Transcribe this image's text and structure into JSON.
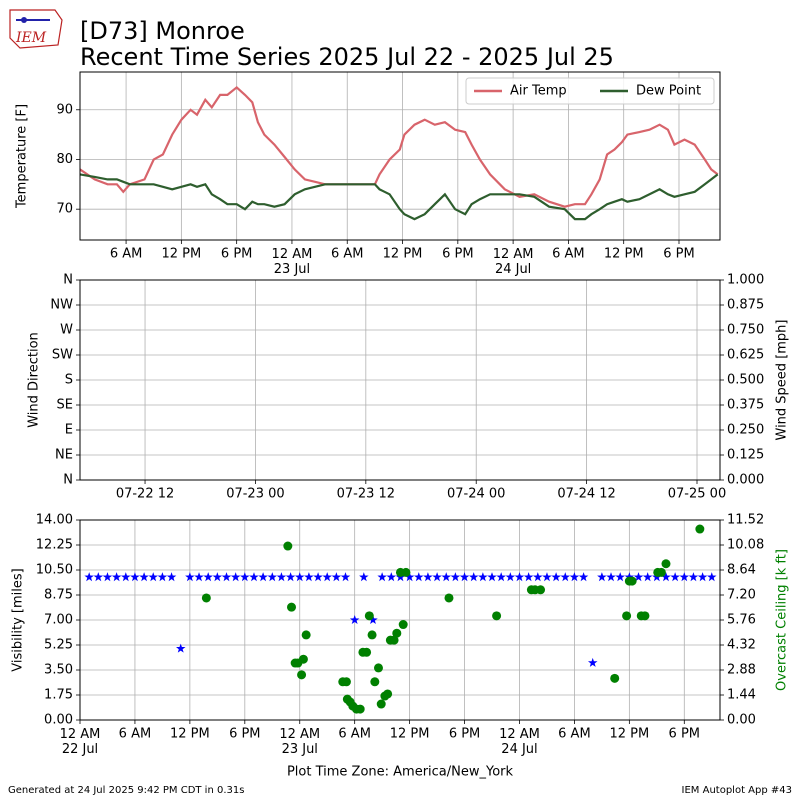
{
  "header": {
    "title": "[D73] Monroe",
    "subtitle": "Recent Time Series 2025 Jul 22 - 2025 Jul 25",
    "logo_text": "IEM"
  },
  "chart_data": [
    {
      "type": "line",
      "ylabel": "Temperature [F]",
      "grid": true,
      "legend": "upper right",
      "xlim": [
        1.0,
        70.45
      ],
      "xticks": [
        {
          "value": 6,
          "label": "6 AM"
        },
        {
          "value": 12,
          "label": "12 PM"
        },
        {
          "value": 18,
          "label": "6 PM"
        },
        {
          "value": 24,
          "label": "12 AM\n23 Jul"
        },
        {
          "value": 30,
          "label": "6 AM"
        },
        {
          "value": 36,
          "label": "12 PM"
        },
        {
          "value": 42,
          "label": "6 PM"
        },
        {
          "value": 48,
          "label": "12 AM\n24 Jul"
        },
        {
          "value": 54,
          "label": "6 AM"
        },
        {
          "value": 60,
          "label": "12 PM"
        },
        {
          "value": 66,
          "label": "6 PM"
        }
      ],
      "ylim": [
        63.8,
        97.6
      ],
      "yticks": [
        70,
        80,
        90
      ],
      "x": [
        1,
        2.6,
        4,
        5,
        5.7,
        6.4,
        8,
        9,
        10,
        11,
        12,
        13,
        13.7,
        14.6,
        15.3,
        16.2,
        17,
        18,
        18.9,
        19.7,
        20.3,
        21,
        22.1,
        23.2,
        24.3,
        25.4,
        26.5,
        27.6,
        30,
        33,
        33.5,
        34.6,
        35.7,
        36.2,
        37.3,
        38.4,
        39.5,
        40.6,
        41.7,
        42.8,
        43.5,
        44.4,
        45.5,
        47.1,
        48.7,
        50.3,
        51.9,
        53.6,
        54.7,
        55.8,
        56.5,
        57.4,
        58.2,
        59,
        59.8,
        60.4,
        61.7,
        62.8,
        63.9,
        64.8,
        65.5,
        66.6,
        67.7,
        68.8,
        69.5,
        70.2
      ],
      "series": [
        {
          "name": "Air Temp",
          "color": "#d8646b",
          "values": [
            78,
            76,
            75,
            75,
            73.5,
            75,
            76,
            80,
            81,
            85,
            88,
            90,
            89,
            92,
            90.5,
            93,
            93,
            94.5,
            93,
            91.5,
            87.5,
            85,
            83,
            80.5,
            78,
            76,
            75.5,
            75,
            75,
            75,
            77,
            80,
            82,
            85,
            87,
            88,
            87,
            87.5,
            86,
            85.5,
            83,
            80,
            77,
            74,
            72.5,
            73,
            71.5,
            70.5,
            71,
            71,
            73,
            76,
            81,
            82,
            83.5,
            85,
            85.5,
            86,
            87,
            86,
            83,
            84,
            83,
            80,
            78,
            77
          ]
        },
        {
          "name": "Dew Point",
          "color": "#2e5e2e",
          "values": [
            77,
            76.5,
            76,
            76,
            75.5,
            75,
            75,
            75,
            74.5,
            74,
            74.5,
            75,
            74.5,
            75,
            73,
            72,
            71,
            71,
            70,
            71.5,
            71,
            71,
            70.5,
            71,
            73,
            74,
            74.5,
            75,
            75,
            75,
            74,
            73,
            70,
            69,
            68,
            69,
            71,
            73,
            70,
            69,
            71,
            72,
            73,
            73,
            73,
            72.5,
            70.5,
            70,
            68,
            68,
            69,
            70,
            71,
            71.5,
            72,
            71.5,
            72,
            73,
            74,
            73,
            72.5,
            73,
            73.5,
            75,
            76,
            77
          ]
        }
      ]
    },
    {
      "type": "line",
      "ylabel": "Wind Direction",
      "y2label": "Wind Speed [mph]",
      "grid": true,
      "xlim": [
        4.93,
        74.5
      ],
      "xticks": [
        {
          "value": 12,
          "label": "07-22 12"
        },
        {
          "value": 24,
          "label": "07-23 00"
        },
        {
          "value": 36,
          "label": "07-23 12"
        },
        {
          "value": 48,
          "label": "07-24 00"
        },
        {
          "value": 60,
          "label": "07-24 12"
        },
        {
          "value": 72,
          "label": "07-25 00"
        }
      ],
      "ylim": [
        0,
        360
      ],
      "yticks": [
        {
          "value": 0,
          "label": "N"
        },
        {
          "value": 45,
          "label": "NE"
        },
        {
          "value": 90,
          "label": "E"
        },
        {
          "value": 135,
          "label": "SE"
        },
        {
          "value": 180,
          "label": "S"
        },
        {
          "value": 225,
          "label": "SW"
        },
        {
          "value": 270,
          "label": "W"
        },
        {
          "value": 315,
          "label": "NW"
        },
        {
          "value": 360,
          "label": "N"
        }
      ],
      "y2lim": [
        0,
        1
      ],
      "y2ticks": [
        {
          "value": 0,
          "label": "0.000"
        },
        0.125,
        {
          "value": 0.25,
          "label": "0.250"
        },
        0.375,
        {
          "value": 0.5,
          "label": "0.500"
        },
        0.625,
        {
          "value": 0.75,
          "label": "0.750"
        },
        0.875,
        {
          "value": 1,
          "label": "1.000"
        }
      ]
    },
    {
      "type": "scatter",
      "ylabel": "Visibility [miles]",
      "y2label": "Overcast Ceiling [k ft]",
      "y2color": "#008000",
      "xlabel": "Plot Time Zone: America/New_York",
      "grid": true,
      "xlim": [
        0,
        69.9
      ],
      "xticks": [
        {
          "value": 0,
          "label": "12 AM\n22 Jul"
        },
        {
          "value": 6,
          "label": "6 AM"
        },
        {
          "value": 12,
          "label": "12 PM"
        },
        {
          "value": 18,
          "label": "6 PM"
        },
        {
          "value": 24,
          "label": "12 AM\n23 Jul"
        },
        {
          "value": 30,
          "label": "6 AM"
        },
        {
          "value": 36,
          "label": "12 PM"
        },
        {
          "value": 42,
          "label": "6 PM"
        },
        {
          "value": 48,
          "label": "12 AM\n24 Jul"
        },
        {
          "value": 54,
          "label": "6 AM"
        },
        {
          "value": 60,
          "label": "12 PM"
        },
        {
          "value": 66,
          "label": "6 PM"
        }
      ],
      "ylim": [
        0,
        14
      ],
      "yticks": [
        {
          "value": 0,
          "label": "0.00"
        },
        1.75,
        {
          "value": 3.5,
          "label": "3.50"
        },
        5.25,
        {
          "value": 7,
          "label": "7.00"
        },
        8.75,
        {
          "value": 10.5,
          "label": "10.50"
        },
        12.25,
        {
          "value": 14,
          "label": "14.00"
        }
      ],
      "y2lim": [
        0,
        11.52
      ],
      "y2ticks": [
        {
          "value": 0,
          "label": "0.00"
        },
        1.44,
        2.88,
        4.32,
        5.76,
        {
          "value": 7.2,
          "label": "7.20"
        },
        8.64,
        10.08,
        11.52
      ],
      "series": [
        {
          "marker": "star",
          "color": "#0000ff",
          "x": [
            1,
            2,
            3,
            4,
            5,
            6,
            7,
            8,
            9,
            10,
            11,
            12,
            13,
            14,
            15,
            16,
            17,
            18,
            19,
            20,
            21,
            22,
            23,
            24,
            25,
            26,
            27,
            28,
            29,
            30,
            31,
            32,
            33,
            34,
            35,
            36,
            37,
            38,
            39,
            40,
            41,
            42,
            43,
            44,
            45,
            46,
            47,
            48,
            49,
            50,
            51,
            52,
            53,
            54,
            55,
            56,
            57,
            58,
            59,
            60,
            61,
            62,
            63,
            64,
            65,
            66,
            67,
            68,
            69
          ],
          "values": [
            10,
            10,
            10,
            10,
            10,
            10,
            10,
            10,
            10,
            10,
            5,
            10,
            10,
            10,
            10,
            10,
            10,
            10,
            10,
            10,
            10,
            10,
            10,
            10,
            10,
            10,
            10,
            10,
            10,
            7,
            10,
            7,
            10,
            10,
            10,
            10,
            10,
            10,
            10,
            10,
            10,
            10,
            10,
            10,
            10,
            10,
            10,
            10,
            10,
            10,
            10,
            10,
            10,
            10,
            10,
            4,
            10,
            10,
            10,
            10,
            10,
            10,
            10,
            10,
            10,
            10,
            10,
            10,
            10
          ]
        },
        {
          "marker": "circle",
          "color": "#008000",
          "axis": "y2",
          "x": [
            13.8,
            22.7,
            23.1,
            23.5,
            23.8,
            24.2,
            24.4,
            24.7,
            28.7,
            29.1,
            29.2,
            29.5,
            29.8,
            30.2,
            30.6,
            30.9,
            31.3,
            31.6,
            31.9,
            32.2,
            32.6,
            32.9,
            33.3,
            33.6,
            33.9,
            34.3,
            34.6,
            35.0,
            35.3,
            35.6,
            40.3,
            45.5,
            49.3,
            49.7,
            50.3,
            58.4,
            59.7,
            60.0,
            60.3,
            61.3,
            61.7,
            63.1,
            63.5,
            64.0,
            67.7
          ],
          "values": [
            7.03,
            10.02,
            6.5,
            3.28,
            3.28,
            2.6,
            3.5,
            4.9,
            2.2,
            2.2,
            1.2,
            1.04,
            0.8,
            0.63,
            0.63,
            3.9,
            3.9,
            6.0,
            4.9,
            2.2,
            3.0,
            0.92,
            1.38,
            1.5,
            4.6,
            4.6,
            5.0,
            8.5,
            5.5,
            8.5,
            7.03,
            6.0,
            7.5,
            7.5,
            7.5,
            2.4,
            6.0,
            8.0,
            8.0,
            6.0,
            6.0,
            8.5,
            8.5,
            9.0,
            11.0
          ]
        }
      ]
    }
  ],
  "footer": {
    "left": "Generated at 24 Jul 2025 9:42 PM CDT in 0.31s",
    "right": "IEM Autoplot App #43"
  }
}
